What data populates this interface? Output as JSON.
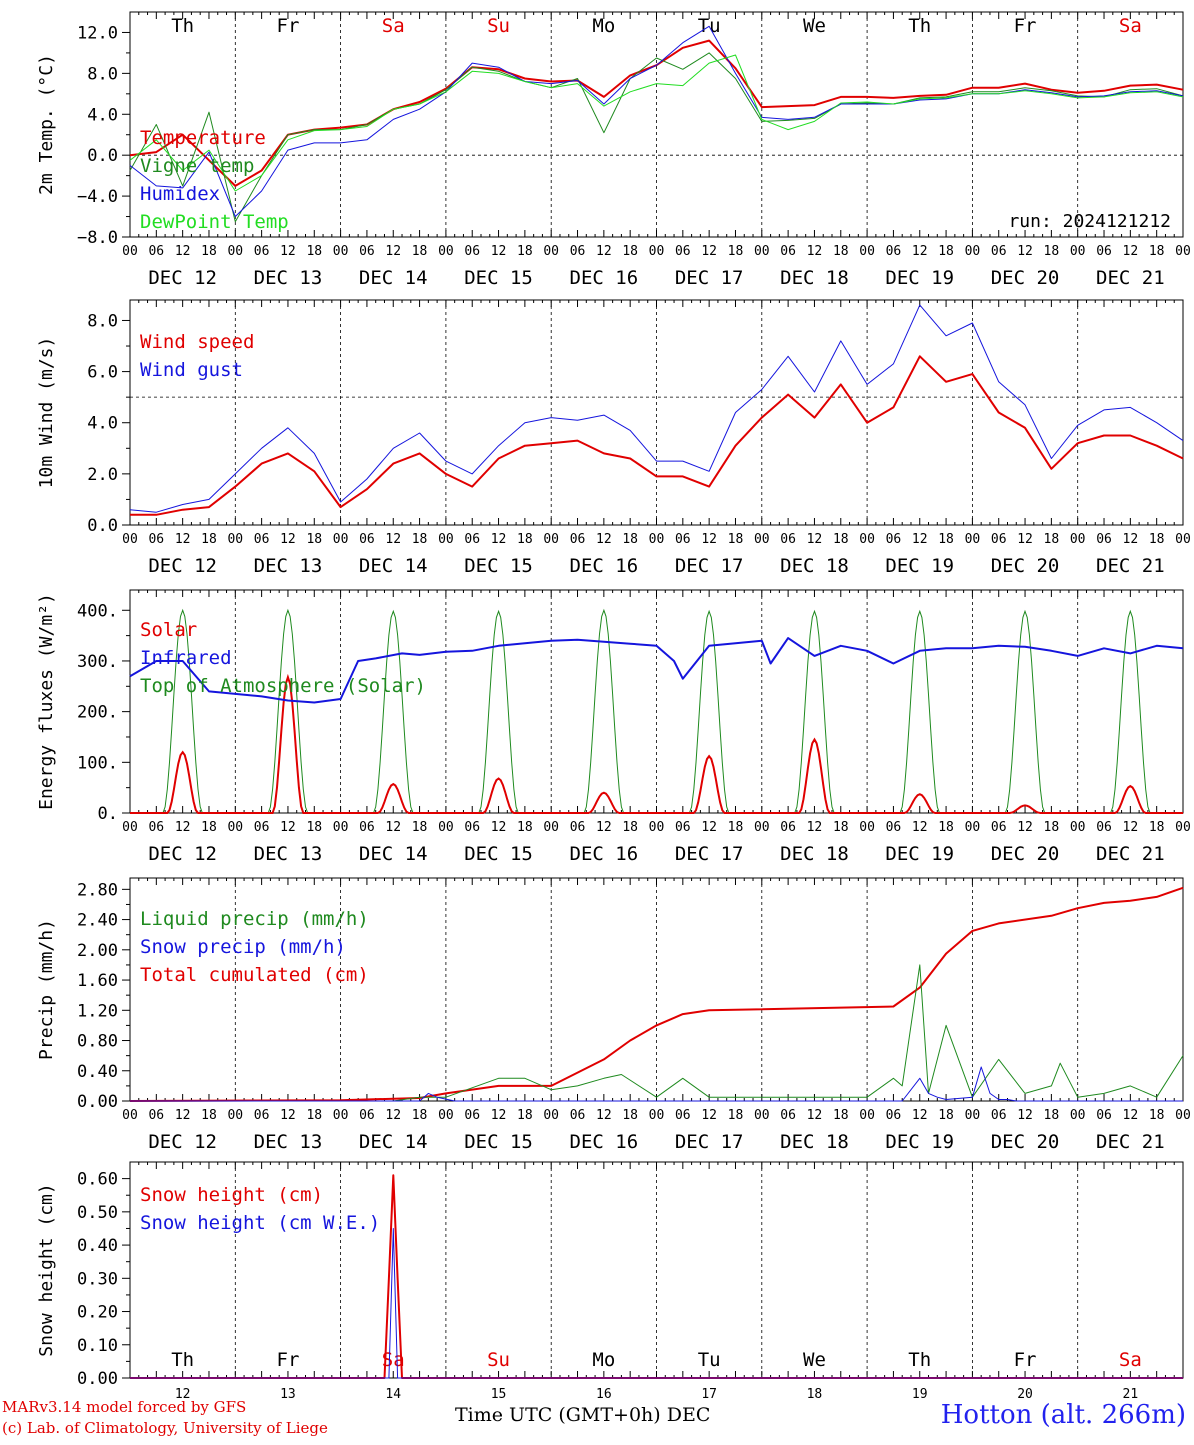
{
  "station": "Hotton (alt. 266m)",
  "credits": [
    "MARv3.14 model forced by GFS",
    "(c) Lab. of Climatology, University of Liege"
  ],
  "time_axis_label": "Time UTC (GMT+0h)",
  "month_label": "DEC",
  "run_label": "run: 2024121212",
  "colors": {
    "red": "#e00000",
    "green": "#1f8a1f",
    "blue": "#1515dd",
    "light_green": "#22dd22",
    "weekend": "#e00000",
    "weekday": "#000000"
  },
  "days": [
    {
      "abbr": "Th",
      "date_label": "DEC 12",
      "day_num": "12",
      "weekend": false
    },
    {
      "abbr": "Fr",
      "date_label": "DEC 13",
      "day_num": "13",
      "weekend": false
    },
    {
      "abbr": "Sa",
      "date_label": "DEC 14",
      "day_num": "14",
      "weekend": true
    },
    {
      "abbr": "Su",
      "date_label": "DEC 15",
      "day_num": "15",
      "weekend": true
    },
    {
      "abbr": "Mo",
      "date_label": "DEC 16",
      "day_num": "16",
      "weekend": false
    },
    {
      "abbr": "Tu",
      "date_label": "DEC 17",
      "day_num": "17",
      "weekend": false
    },
    {
      "abbr": "We",
      "date_label": "DEC 18",
      "day_num": "18",
      "weekend": false
    },
    {
      "abbr": "Th",
      "date_label": "DEC 19",
      "day_num": "19",
      "weekend": false
    },
    {
      "abbr": "Fr",
      "date_label": "DEC 20",
      "day_num": "20",
      "weekend": false
    },
    {
      "abbr": "Sa",
      "date_label": "DEC 21",
      "day_num": "21",
      "weekend": true
    }
  ],
  "hour_ticks": [
    "00",
    "06",
    "12",
    "18"
  ],
  "chart_data": [
    {
      "type": "line",
      "ylabel": "2m Temp. (°C)",
      "ylim": [
        -8,
        14
      ],
      "yticks": [
        -8,
        -4,
        0,
        4,
        8,
        12
      ],
      "ytick_labels": [
        "−8.0",
        "−4.0",
        "0.0",
        "4.0",
        "8.0",
        "12.0"
      ],
      "xlim_hours": [
        0,
        240
      ],
      "ref_line": 0,
      "show_day_abbr": true,
      "show_run": true,
      "legend": [
        {
          "label": "Temperature",
          "color": "#e00000"
        },
        {
          "label": "Vigne temp",
          "color": "#1f8a1f"
        },
        {
          "label": "Humidex",
          "color": "#1515dd"
        },
        {
          "label": "DewPoint Temp",
          "color": "#22dd22"
        }
      ],
      "series": [
        {
          "name": "Temperature",
          "color": "#e00000",
          "width": 2,
          "x": [
            0,
            6,
            12,
            18,
            24,
            30,
            36,
            42,
            48,
            54,
            60,
            66,
            72,
            78,
            84,
            90,
            96,
            102,
            108,
            114,
            120,
            126,
            132,
            138,
            144,
            150,
            156,
            162,
            168,
            174,
            180,
            186,
            192,
            198,
            204,
            210,
            216,
            222,
            228,
            234,
            240
          ],
          "y": [
            0,
            0.3,
            2,
            -0.5,
            -3,
            -1.5,
            2,
            2.5,
            2.7,
            3,
            4.5,
            5.2,
            6.5,
            8.6,
            8.4,
            7.5,
            7.2,
            7.3,
            5.7,
            7.8,
            8.8,
            10.5,
            11.2,
            8.5,
            4.7,
            4.8,
            4.9,
            5.7,
            5.7,
            5.6,
            5.8,
            5.9,
            6.6,
            6.6,
            7,
            6.4,
            6.1,
            6.3,
            6.8,
            6.9,
            6.4
          ]
        },
        {
          "name": "Vigne temp",
          "color": "#1f8a1f",
          "width": 1,
          "x": [
            0,
            6,
            12,
            18,
            24,
            30,
            36,
            42,
            48,
            54,
            60,
            66,
            72,
            78,
            84,
            90,
            96,
            102,
            108,
            114,
            120,
            126,
            132,
            138,
            144,
            150,
            156,
            162,
            168,
            174,
            180,
            186,
            192,
            198,
            204,
            210,
            216,
            222,
            228,
            234,
            240
          ],
          "y": [
            -1.5,
            3,
            -3,
            4.2,
            -6.5,
            -2,
            2,
            2.5,
            2.5,
            3,
            4.5,
            5,
            6.4,
            8.6,
            8.2,
            7.2,
            6.6,
            7.5,
            2.2,
            7.5,
            9.5,
            8.4,
            10,
            7.5,
            3.3,
            3.4,
            3.6,
            5,
            5.1,
            5,
            5.6,
            5.7,
            6.2,
            6.2,
            6.6,
            6.3,
            5.8,
            5.7,
            6.4,
            6.5,
            5.8
          ]
        },
        {
          "name": "Humidex",
          "color": "#1515dd",
          "width": 1,
          "x": [
            0,
            6,
            12,
            18,
            24,
            30,
            36,
            42,
            48,
            54,
            60,
            66,
            72,
            78,
            84,
            90,
            96,
            102,
            108,
            114,
            120,
            126,
            132,
            138,
            144,
            150,
            156,
            162,
            168,
            174,
            180,
            186,
            192,
            198,
            204,
            210,
            216,
            222,
            228,
            234,
            240
          ],
          "y": [
            -1,
            -3,
            -3.2,
            0.3,
            -6,
            -3.5,
            0.5,
            1.2,
            1.2,
            1.5,
            3.5,
            4.5,
            6.2,
            9,
            8.6,
            7.2,
            7,
            7.3,
            5,
            7.5,
            8.8,
            11,
            12.6,
            8,
            3.7,
            3.5,
            3.7,
            5,
            5,
            5,
            5.4,
            5.5,
            6,
            6,
            6.4,
            6.1,
            5.7,
            5.8,
            6.2,
            6.3,
            5.8
          ]
        },
        {
          "name": "DewPoint Temp",
          "color": "#22dd22",
          "width": 1,
          "x": [
            0,
            6,
            12,
            18,
            24,
            30,
            36,
            42,
            48,
            54,
            60,
            66,
            72,
            78,
            84,
            90,
            96,
            102,
            108,
            114,
            120,
            126,
            132,
            138,
            144,
            150,
            156,
            162,
            168,
            174,
            180,
            186,
            192,
            198,
            204,
            210,
            216,
            222,
            228,
            234,
            240
          ],
          "y": [
            -0.5,
            1.5,
            -1.5,
            0.5,
            -3.5,
            -2,
            1.5,
            2.4,
            2.5,
            2.8,
            4.5,
            5,
            6.2,
            8.2,
            8,
            7.2,
            6.6,
            7,
            4.8,
            6.2,
            7,
            6.8,
            9,
            9.8,
            3.5,
            2.5,
            3.3,
            5.1,
            5.2,
            5,
            5.5,
            5.6,
            6,
            6,
            6.3,
            6,
            5.6,
            5.7,
            6.1,
            6.2,
            5.7
          ]
        }
      ]
    },
    {
      "type": "line",
      "ylabel": "10m Wind (m/s)",
      "ylim": [
        0,
        8.8
      ],
      "yticks": [
        0,
        2,
        4,
        6,
        8
      ],
      "ytick_labels": [
        "0.0",
        "2.0",
        "4.0",
        "6.0",
        "8.0"
      ],
      "xlim_hours": [
        0,
        240
      ],
      "ref_line": 5,
      "legend": [
        {
          "label": "Wind speed",
          "color": "#e00000"
        },
        {
          "label": "Wind gust",
          "color": "#1515dd"
        }
      ],
      "series": [
        {
          "name": "Wind speed",
          "color": "#e00000",
          "width": 2,
          "x": [
            0,
            6,
            12,
            18,
            24,
            30,
            36,
            42,
            48,
            54,
            60,
            66,
            72,
            78,
            84,
            90,
            96,
            102,
            108,
            114,
            120,
            126,
            132,
            138,
            144,
            150,
            156,
            162,
            168,
            174,
            180,
            186,
            192,
            198,
            204,
            210,
            216,
            222,
            228,
            234,
            240
          ],
          "y": [
            0.4,
            0.4,
            0.6,
            0.7,
            1.5,
            2.4,
            2.8,
            2.1,
            0.7,
            1.4,
            2.4,
            2.8,
            2,
            1.5,
            2.6,
            3.1,
            3.2,
            3.3,
            2.8,
            2.6,
            1.9,
            1.9,
            1.5,
            3.1,
            4.2,
            5.1,
            4.2,
            5.5,
            4,
            4.6,
            6.6,
            5.6,
            5.9,
            4.4,
            3.8,
            2.2,
            3.2,
            3.5,
            3.5,
            3.1,
            2.6
          ]
        },
        {
          "name": "Wind gust",
          "color": "#1515dd",
          "width": 1,
          "x": [
            0,
            6,
            12,
            18,
            24,
            30,
            36,
            42,
            48,
            54,
            60,
            66,
            72,
            78,
            84,
            90,
            96,
            102,
            108,
            114,
            120,
            126,
            132,
            138,
            144,
            150,
            156,
            162,
            168,
            174,
            180,
            186,
            192,
            198,
            204,
            210,
            216,
            222,
            228,
            234,
            240
          ],
          "y": [
            0.6,
            0.5,
            0.8,
            1,
            2,
            3,
            3.8,
            2.8,
            0.9,
            1.8,
            3,
            3.6,
            2.5,
            2,
            3.1,
            4,
            4.2,
            4.1,
            4.3,
            3.7,
            2.5,
            2.5,
            2.1,
            4.4,
            5.3,
            6.6,
            5.2,
            7.2,
            5.5,
            6.3,
            8.6,
            7.4,
            7.9,
            5.6,
            4.7,
            2.6,
            3.9,
            4.5,
            4.6,
            4,
            3.3
          ]
        }
      ]
    },
    {
      "type": "line",
      "ylabel": "Energy fluxes (W/m²)",
      "ylim": [
        0,
        440
      ],
      "yticks": [
        0,
        100,
        200,
        300,
        400
      ],
      "ytick_labels": [
        "0.",
        "100.",
        "200.",
        "300.",
        "400."
      ],
      "xlim_hours": [
        0,
        240
      ],
      "legend": [
        {
          "label": "Solar",
          "color": "#e00000"
        },
        {
          "label": "Infrared",
          "color": "#1515dd"
        },
        {
          "label": "Top of Atmosphere (Solar)",
          "color": "#1f8a1f"
        }
      ],
      "daily_peaks": {
        "toa": [
          400,
          400,
          398,
          398,
          400,
          398,
          398,
          398,
          398,
          398
        ],
        "solar": [
          120,
          268,
          57,
          68,
          40,
          112,
          145,
          37,
          15,
          53
        ]
      },
      "series": [
        {
          "name": "Infrared",
          "color": "#1515dd",
          "width": 2,
          "x": [
            0,
            6,
            12,
            18,
            24,
            30,
            36,
            42,
            48,
            52,
            56,
            62,
            66,
            72,
            78,
            84,
            90,
            96,
            102,
            108,
            114,
            120,
            124,
            126,
            132,
            138,
            144,
            146,
            150,
            156,
            162,
            168,
            174,
            180,
            186,
            192,
            198,
            204,
            210,
            216,
            222,
            228,
            234,
            240
          ],
          "y": [
            270,
            300,
            300,
            240,
            235,
            230,
            222,
            218,
            225,
            300,
            305,
            315,
            312,
            318,
            320,
            330,
            335,
            340,
            342,
            338,
            334,
            330,
            300,
            265,
            330,
            335,
            340,
            295,
            345,
            310,
            330,
            320,
            295,
            320,
            325,
            325,
            330,
            328,
            320,
            310,
            325,
            315,
            330,
            325
          ]
        }
      ]
    },
    {
      "type": "line",
      "ylabel": "Precip (mm/h)",
      "ylim": [
        0,
        2.95
      ],
      "yticks": [
        0,
        0.4,
        0.8,
        1.2,
        1.6,
        2.0,
        2.4,
        2.8
      ],
      "ytick_labels": [
        "0.00",
        "0.40",
        "0.80",
        "1.20",
        "1.60",
        "2.00",
        "2.40",
        "2.80"
      ],
      "xlim_hours": [
        0,
        240
      ],
      "legend": [
        {
          "label": "Liquid precip (mm/h)",
          "color": "#1f8a1f"
        },
        {
          "label": "Snow precip (mm/h)",
          "color": "#1515dd"
        },
        {
          "label": "Total cumulated (cm)",
          "color": "#e00000"
        }
      ],
      "series": [
        {
          "name": "Total cumulated (cm)",
          "color": "#e00000",
          "width": 2,
          "x": [
            0,
            48,
            66,
            72,
            84,
            96,
            108,
            114,
            120,
            126,
            132,
            174,
            180,
            186,
            192,
            198,
            210,
            216,
            222,
            228,
            234,
            240
          ],
          "y": [
            0,
            0.01,
            0.04,
            0.1,
            0.2,
            0.2,
            0.55,
            0.8,
            1.0,
            1.15,
            1.2,
            1.25,
            1.5,
            1.95,
            2.25,
            2.35,
            2.45,
            2.55,
            2.62,
            2.65,
            2.7,
            2.82
          ]
        },
        {
          "name": "Liquid precip (mm/h)",
          "color": "#1f8a1f",
          "width": 1,
          "x": [
            0,
            60,
            66,
            72,
            84,
            90,
            96,
            102,
            108,
            112,
            120,
            126,
            132,
            138,
            168,
            174,
            176,
            180,
            182,
            186,
            192,
            198,
            204,
            210,
            212,
            216,
            222,
            228,
            234,
            240
          ],
          "y": [
            0,
            0,
            0.05,
            0.05,
            0.3,
            0.3,
            0.15,
            0.2,
            0.3,
            0.35,
            0.05,
            0.3,
            0.05,
            0.05,
            0.05,
            0.3,
            0.2,
            1.8,
            0.1,
            1,
            0.05,
            0.55,
            0.1,
            0.2,
            0.5,
            0.05,
            0.1,
            0.2,
            0.05,
            0.6
          ]
        },
        {
          "name": "Snow precip (mm/h)",
          "color": "#1515dd",
          "width": 1,
          "x": [
            0,
            66,
            68,
            70,
            74,
            176,
            180,
            182,
            184,
            186,
            192,
            194,
            196,
            198,
            200,
            202,
            240
          ],
          "y": [
            0,
            0,
            0.1,
            0.05,
            0,
            0,
            0.3,
            0.1,
            0.05,
            0.02,
            0.05,
            0.45,
            0.1,
            0.02,
            0.02,
            0,
            0
          ]
        }
      ]
    },
    {
      "type": "line",
      "ylabel": "Snow height (cm)",
      "ylim": [
        0,
        0.65
      ],
      "yticks": [
        0,
        0.1,
        0.2,
        0.3,
        0.4,
        0.5,
        0.6
      ],
      "ytick_labels": [
        "0.00",
        "0.10",
        "0.20",
        "0.30",
        "0.40",
        "0.50",
        "0.60"
      ],
      "xlim_hours": [
        0,
        240
      ],
      "bottom_day_abbr": true,
      "legend": [
        {
          "label": "Snow height (cm)",
          "color": "#e00000"
        },
        {
          "label": "Snow height (cm W.E.)",
          "color": "#1515dd"
        }
      ],
      "series": [
        {
          "name": "Snow height (cm)",
          "color": "#e00000",
          "width": 2,
          "x": [
            0,
            58,
            59,
            60,
            61,
            62,
            240
          ],
          "y": [
            0,
            0,
            0.3,
            0.61,
            0.3,
            0,
            0
          ]
        },
        {
          "name": "Snow height (cm W.E.)",
          "color": "#1515dd",
          "width": 1,
          "x": [
            0,
            59,
            60,
            61,
            240
          ],
          "y": [
            0,
            0,
            0.45,
            0,
            0
          ]
        }
      ]
    }
  ]
}
